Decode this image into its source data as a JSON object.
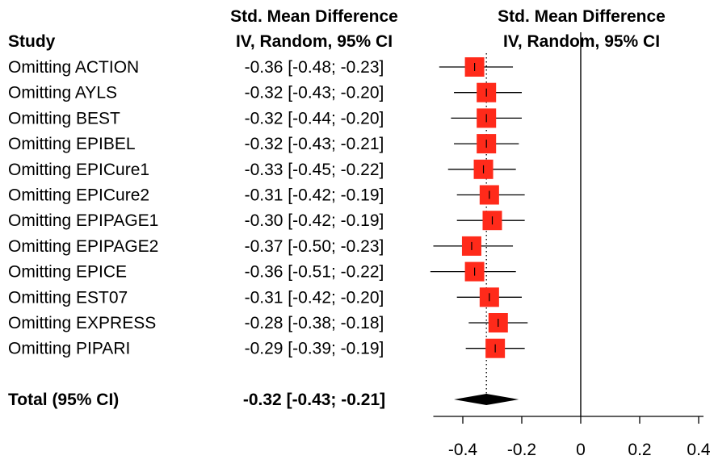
{
  "chart_data": {
    "type": "forest",
    "header": {
      "study": "Study",
      "effect_line1": "Std. Mean Difference",
      "effect_line2": "IV, Random, 95% CI",
      "plot_line1": "Std. Mean Difference",
      "plot_line2": "IV, Random, 95% CI"
    },
    "studies": [
      {
        "label": "Omitting ACTION",
        "ci_text": "-0.36 [-0.48; -0.23]",
        "est": -0.36,
        "lo": -0.48,
        "hi": -0.23
      },
      {
        "label": "Omitting AYLS",
        "ci_text": "-0.32 [-0.43; -0.20]",
        "est": -0.32,
        "lo": -0.43,
        "hi": -0.2
      },
      {
        "label": "Omitting BEST",
        "ci_text": "-0.32 [-0.44; -0.20]",
        "est": -0.32,
        "lo": -0.44,
        "hi": -0.2
      },
      {
        "label": "Omitting EPIBEL",
        "ci_text": "-0.32 [-0.43; -0.21]",
        "est": -0.32,
        "lo": -0.43,
        "hi": -0.21
      },
      {
        "label": "Omitting EPICure1",
        "ci_text": "-0.33 [-0.45; -0.22]",
        "est": -0.33,
        "lo": -0.45,
        "hi": -0.22
      },
      {
        "label": "Omitting EPICure2",
        "ci_text": "-0.31 [-0.42; -0.19]",
        "est": -0.31,
        "lo": -0.42,
        "hi": -0.19
      },
      {
        "label": "Omitting EPIPAGE1",
        "ci_text": "-0.30 [-0.42; -0.19]",
        "est": -0.3,
        "lo": -0.42,
        "hi": -0.19
      },
      {
        "label": "Omitting EPIPAGE2",
        "ci_text": "-0.37 [-0.50; -0.23]",
        "est": -0.37,
        "lo": -0.5,
        "hi": -0.23
      },
      {
        "label": "Omitting EPICE",
        "ci_text": "-0.36 [-0.51; -0.22]",
        "est": -0.36,
        "lo": -0.51,
        "hi": -0.22
      },
      {
        "label": "Omitting EST07",
        "ci_text": "-0.31 [-0.42; -0.20]",
        "est": -0.31,
        "lo": -0.42,
        "hi": -0.2
      },
      {
        "label": "Omitting EXPRESS",
        "ci_text": "-0.28 [-0.38; -0.18]",
        "est": -0.28,
        "lo": -0.38,
        "hi": -0.18
      },
      {
        "label": "Omitting PIPARI",
        "ci_text": "-0.29 [-0.39; -0.19]",
        "est": -0.29,
        "lo": -0.39,
        "hi": -0.19
      }
    ],
    "total": {
      "label": "Total (95% CI)",
      "ci_text": "-0.32 [-0.43; -0.21]",
      "est": -0.32,
      "lo": -0.43,
      "hi": -0.21
    },
    "x_axis": {
      "ticks": [
        -0.4,
        -0.2,
        0,
        0.2,
        0.4
      ],
      "tick_labels": [
        "-0.4",
        "-0.2",
        "0",
        "0.2",
        "0.4"
      ],
      "xlim": [
        -0.5,
        0.4
      ],
      "null_line": 0
    },
    "colors": {
      "square": "#ff2a1a",
      "diamond": "#000000",
      "ci_line": "#000000",
      "text": "#000000"
    }
  }
}
